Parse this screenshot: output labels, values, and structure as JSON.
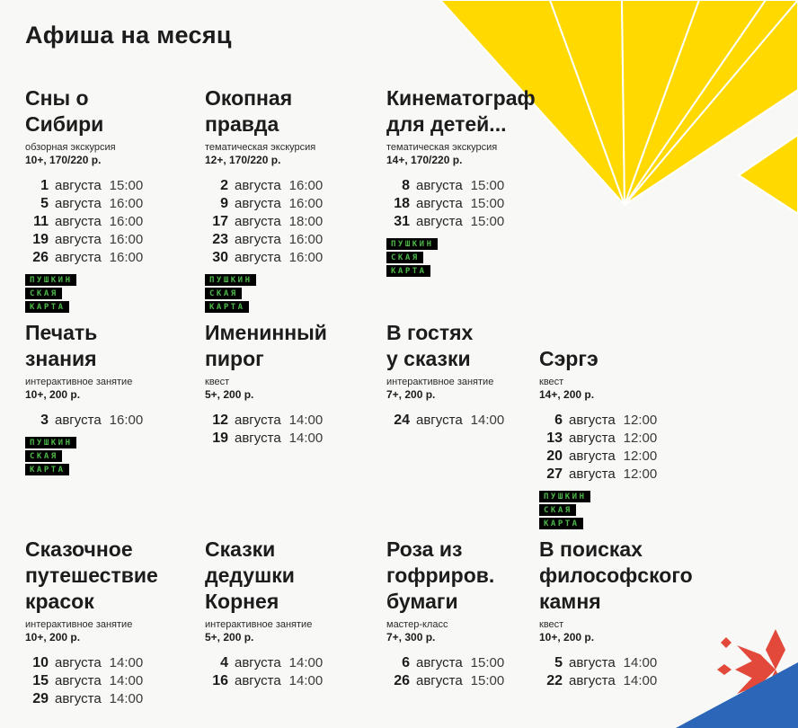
{
  "page": {
    "title": "Афиша на месяц"
  },
  "month_word": "августа",
  "pushkin_badge": {
    "lines": [
      "ПУШКИН",
      "СКАЯ",
      "КАРТА"
    ],
    "bg": "#000000",
    "fg": "#4db848"
  },
  "colors": {
    "yellow": "#ffd900",
    "blue": "#2b66b8",
    "red": "#e2493b",
    "text": "#1c1c1c",
    "background": "#f8f8f6"
  },
  "rows": [
    [
      {
        "title_lines": [
          "Сны о",
          "Сибири"
        ],
        "type": "обзорная экскурсия",
        "age_price": "10+, 170/220 р.",
        "dates": [
          {
            "day": "1",
            "time": "15:00"
          },
          {
            "day": "5",
            "time": "16:00"
          },
          {
            "day": "11",
            "time": "16:00"
          },
          {
            "day": "19",
            "time": "16:00"
          },
          {
            "day": "26",
            "time": "16:00"
          }
        ],
        "pushkin": true
      },
      {
        "title_lines": [
          "Окопная",
          "правда"
        ],
        "type": "тематическая экскурсия",
        "age_price": "12+, 170/220 р.",
        "dates": [
          {
            "day": "2",
            "time": "16:00"
          },
          {
            "day": "9",
            "time": "16:00"
          },
          {
            "day": "17",
            "time": "18:00"
          },
          {
            "day": "23",
            "time": "16:00"
          },
          {
            "day": "30",
            "time": "16:00"
          }
        ],
        "pushkin": true
      },
      {
        "title_lines": [
          "Кинематограф",
          "для детей..."
        ],
        "type": "тематическая экскурсия",
        "age_price": "14+, 170/220 р.",
        "dates": [
          {
            "day": "8",
            "time": "15:00"
          },
          {
            "day": "18",
            "time": "15:00"
          },
          {
            "day": "31",
            "time": "15:00"
          }
        ],
        "pushkin": true
      }
    ],
    [
      {
        "title_lines": [
          "Печать",
          "знания"
        ],
        "type": "интерактивное занятие",
        "age_price": "10+, 200 р.",
        "dates": [
          {
            "day": "3",
            "time": "16:00"
          }
        ],
        "pushkin": true
      },
      {
        "title_lines": [
          "Именинный",
          "пирог"
        ],
        "type": "квест",
        "age_price": "5+, 200 р.",
        "dates": [
          {
            "day": "12",
            "time": "14:00"
          },
          {
            "day": "19",
            "time": "14:00"
          }
        ],
        "pushkin": false
      },
      {
        "title_lines": [
          "В гостях",
          "у сказки"
        ],
        "type": "интерактивное занятие",
        "age_price": "7+, 200 р.",
        "dates": [
          {
            "day": "24",
            "time": "14:00"
          }
        ],
        "pushkin": false
      },
      {
        "title_lines": [
          "Сэргэ"
        ],
        "type": "квест",
        "age_price": "14+, 200 р.",
        "dates": [
          {
            "day": "6",
            "time": "12:00"
          },
          {
            "day": "13",
            "time": "12:00"
          },
          {
            "day": "20",
            "time": "12:00"
          },
          {
            "day": "27",
            "time": "12:00"
          }
        ],
        "pushkin": true
      }
    ],
    [
      {
        "title_lines": [
          "Сказочное",
          "путешествие",
          "красок"
        ],
        "type": "интерактивное занятие",
        "age_price": "10+, 200 р.",
        "dates": [
          {
            "day": "10",
            "time": "14:00"
          },
          {
            "day": "15",
            "time": "14:00"
          },
          {
            "day": "29",
            "time": "14:00"
          }
        ],
        "pushkin": false
      },
      {
        "title_lines": [
          "Сказки",
          "дедушки",
          "Корнея"
        ],
        "type": "интерактивное занятие",
        "age_price": "5+, 200 р.",
        "dates": [
          {
            "day": "4",
            "time": "14:00"
          },
          {
            "day": "16",
            "time": "14:00"
          }
        ],
        "pushkin": false
      },
      {
        "title_lines": [
          "Роза из",
          "гофриров.",
          "бумаги"
        ],
        "type": "мастер-класс",
        "age_price": "7+, 300 р.",
        "dates": [
          {
            "day": "6",
            "time": "15:00"
          },
          {
            "day": "26",
            "time": "15:00"
          }
        ],
        "pushkin": false
      },
      {
        "title_lines": [
          "В поисках",
          "философского",
          "камня"
        ],
        "type": "квест",
        "age_price": "10+, 200 р.",
        "dates": [
          {
            "day": "5",
            "time": "14:00"
          },
          {
            "day": "22",
            "time": "14:00"
          }
        ],
        "pushkin": false
      }
    ]
  ]
}
